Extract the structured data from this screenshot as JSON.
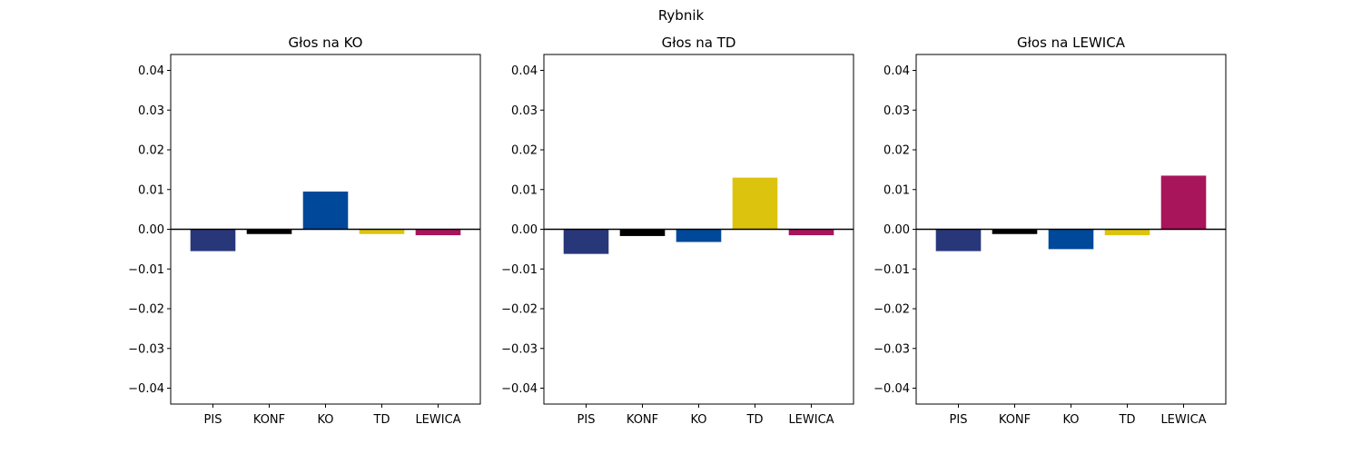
{
  "figure_title": "Rybnik",
  "chart_data": [
    {
      "type": "bar",
      "title": "Głos na KO",
      "xlabel": "",
      "ylabel": "",
      "ylim": [
        -0.044,
        0.044
      ],
      "yticks": [
        -0.04,
        -0.03,
        -0.02,
        -0.01,
        0.0,
        0.01,
        0.02,
        0.03,
        0.04
      ],
      "ytick_labels": [
        "−0.04",
        "−0.03",
        "−0.02",
        "−0.01",
        "0.00",
        "0.01",
        "0.02",
        "0.03",
        "0.04"
      ],
      "categories": [
        "PIS",
        "KONF",
        "KO",
        "TD",
        "LEWICA"
      ],
      "values": [
        -0.0055,
        -0.0012,
        0.0095,
        -0.0012,
        -0.0015
      ],
      "colors": [
        "#283779",
        "#000000",
        "#004899",
        "#dcc40e",
        "#a8155a"
      ],
      "grid": false,
      "zero_line": true
    },
    {
      "type": "bar",
      "title": "Głos na TD",
      "xlabel": "",
      "ylabel": "",
      "ylim": [
        -0.044,
        0.044
      ],
      "yticks": [
        -0.04,
        -0.03,
        -0.02,
        -0.01,
        0.0,
        0.01,
        0.02,
        0.03,
        0.04
      ],
      "ytick_labels": [
        "−0.04",
        "−0.03",
        "−0.02",
        "−0.01",
        "0.00",
        "0.01",
        "0.02",
        "0.03",
        "0.04"
      ],
      "categories": [
        "PIS",
        "KONF",
        "KO",
        "TD",
        "LEWICA"
      ],
      "values": [
        -0.0062,
        -0.0017,
        -0.0032,
        0.013,
        -0.0015
      ],
      "colors": [
        "#283779",
        "#000000",
        "#004899",
        "#dcc40e",
        "#a8155a"
      ],
      "grid": false,
      "zero_line": true
    },
    {
      "type": "bar",
      "title": "Głos na LEWICA",
      "xlabel": "",
      "ylabel": "",
      "ylim": [
        -0.044,
        0.044
      ],
      "yticks": [
        -0.04,
        -0.03,
        -0.02,
        -0.01,
        0.0,
        0.01,
        0.02,
        0.03,
        0.04
      ],
      "ytick_labels": [
        "−0.04",
        "−0.03",
        "−0.02",
        "−0.01",
        "0.00",
        "0.01",
        "0.02",
        "0.03",
        "0.04"
      ],
      "categories": [
        "PIS",
        "KONF",
        "KO",
        "TD",
        "LEWICA"
      ],
      "values": [
        -0.0055,
        -0.0012,
        -0.005,
        -0.0015,
        0.0135
      ],
      "colors": [
        "#283779",
        "#000000",
        "#004899",
        "#dcc40e",
        "#a8155a"
      ],
      "grid": false,
      "zero_line": true
    }
  ]
}
